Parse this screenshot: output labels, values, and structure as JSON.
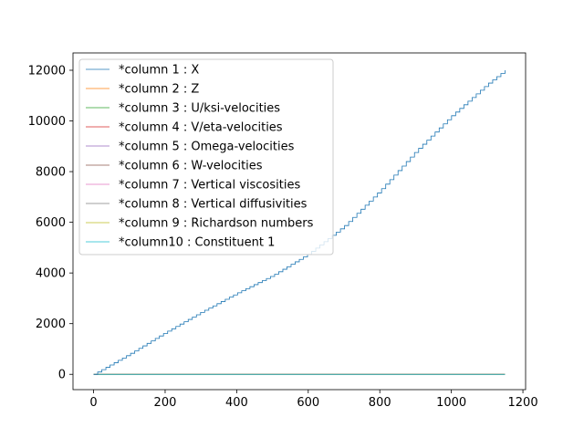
{
  "chart_data": {
    "type": "line",
    "title": "",
    "xlabel": "",
    "ylabel": "",
    "xlim": [
      -57.5,
      1207.5
    ],
    "ylim": [
      -604,
      12684
    ],
    "x_ticks": [
      0,
      200,
      400,
      600,
      800,
      1000,
      1200
    ],
    "y_ticks": [
      0,
      2000,
      4000,
      6000,
      8000,
      10000,
      12000
    ],
    "x_tick_labels": [
      "0",
      "200",
      "400",
      "600",
      "800",
      "1000",
      "1200"
    ],
    "y_tick_labels": [
      "0",
      "2000",
      "4000",
      "6000",
      "8000",
      "10000",
      "12000"
    ],
    "grid": false,
    "legend_position": "upper-left",
    "series": [
      {
        "name": "*column 1 : X",
        "color": "#1f77b4",
        "step": true,
        "x": [
          0,
          100,
          200,
          300,
          400,
          500,
          600,
          700,
          800,
          900,
          1000,
          1100,
          1150
        ],
        "y": [
          0,
          800,
          1650,
          2450,
          3200,
          3900,
          4750,
          5850,
          7250,
          8800,
          10200,
          11450,
          12000
        ]
      },
      {
        "name": "*column 2 : Z",
        "color": "#ff7f0e",
        "x": [
          0,
          1150
        ],
        "y": [
          0,
          0
        ]
      },
      {
        "name": "*column 3 : U/ksi-velocities",
        "color": "#2ca02c",
        "x": [
          0,
          1150
        ],
        "y": [
          0,
          0
        ]
      },
      {
        "name": "*column 4 : V/eta-velocities",
        "color": "#d62728",
        "x": [
          0,
          1150
        ],
        "y": [
          0,
          0
        ]
      },
      {
        "name": "*column 5 : Omega-velocities",
        "color": "#9467bd",
        "x": [
          0,
          1150
        ],
        "y": [
          0,
          0
        ]
      },
      {
        "name": "*column 6 : W-velocities",
        "color": "#8c564b",
        "x": [
          0,
          1150
        ],
        "y": [
          0,
          0
        ]
      },
      {
        "name": "*column 7 : Vertical viscosities",
        "color": "#e377c2",
        "x": [
          0,
          1150
        ],
        "y": [
          0,
          0
        ]
      },
      {
        "name": "*column 8 : Vertical diffusivities",
        "color": "#7f7f7f",
        "x": [
          0,
          1150
        ],
        "y": [
          0,
          0
        ]
      },
      {
        "name": "*column 9 : Richardson numbers",
        "color": "#bcbd22",
        "x": [
          0,
          1150
        ],
        "y": [
          0,
          0
        ]
      },
      {
        "name": "*column10 : Constituent 1",
        "color": "#17becf",
        "x": [
          0,
          1150
        ],
        "y": [
          0,
          0
        ]
      }
    ]
  }
}
